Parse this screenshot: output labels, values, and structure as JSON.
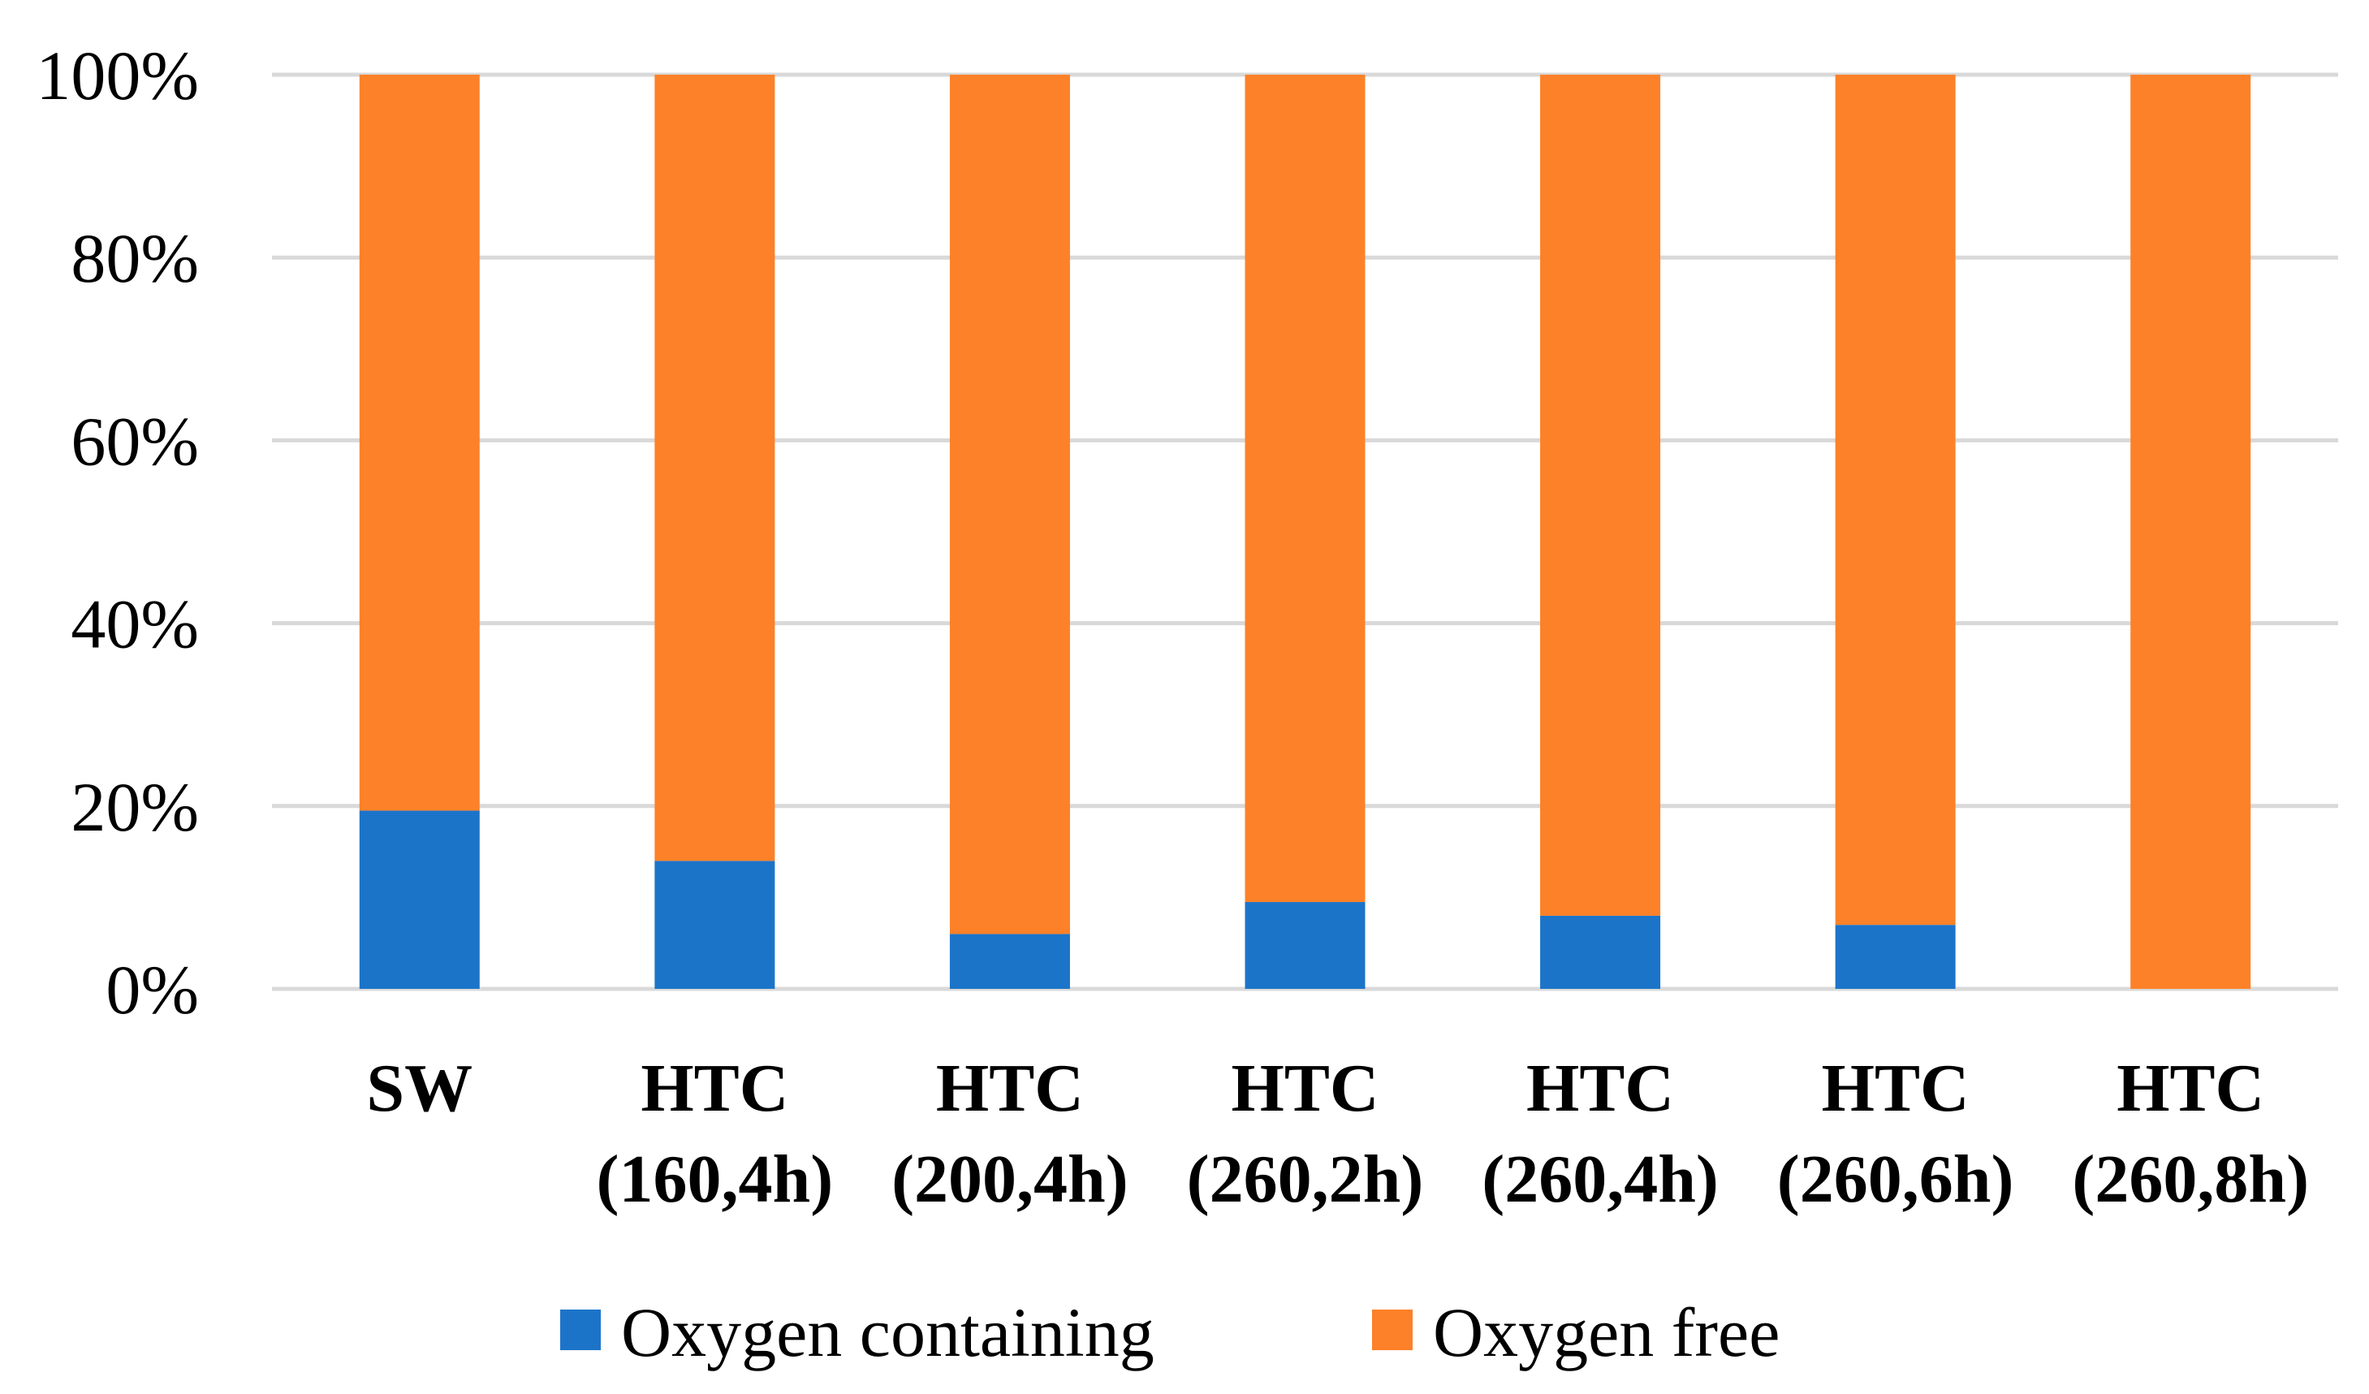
{
  "chart_data": {
    "type": "bar",
    "stacked": true,
    "percent_stacked": true,
    "categories": [
      [
        "SW"
      ],
      [
        "HTC",
        "(160,4h)"
      ],
      [
        "HTC",
        "(200,4h)"
      ],
      [
        "HTC",
        "(260,2h)"
      ],
      [
        "HTC",
        "(260,4h)"
      ],
      [
        "HTC",
        "(260,6h)"
      ],
      [
        "HTC",
        "(260,8h)"
      ]
    ],
    "series": [
      {
        "name": "Oxygen containing",
        "color": "#1c74c9",
        "values": [
          19.5,
          14,
          6,
          9.5,
          8,
          7,
          0
        ]
      },
      {
        "name": "Oxygen free",
        "color": "#fd8128",
        "values": [
          80.5,
          86,
          94,
          90.5,
          92,
          93,
          100
        ]
      }
    ],
    "ylim": [
      0,
      100
    ],
    "yticks": [
      "0%",
      "20%",
      "40%",
      "60%",
      "80%",
      "100%"
    ],
    "grid": true,
    "gridline_color": "#d9d9d9",
    "legend_position": "bottom"
  }
}
